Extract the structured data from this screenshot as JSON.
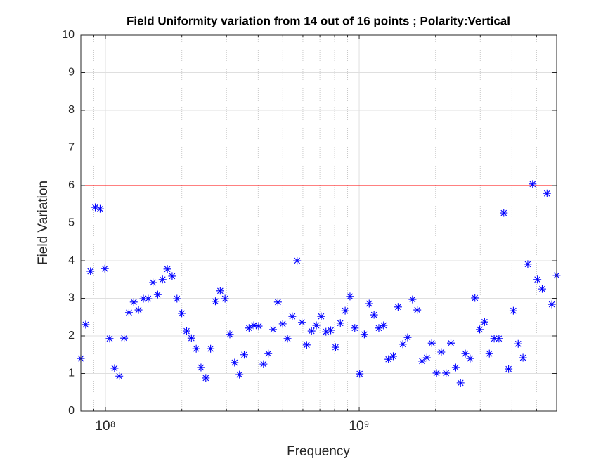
{
  "chart_data": {
    "type": "scatter",
    "title": "Field Uniformity variation from 14 out of 16 points ; Polarity:Vertical",
    "x_label": "Frequency",
    "y_label": "Field Variation",
    "x_scale": "log",
    "xlim": [
      80000000,
      6000000000
    ],
    "xticks": [
      {
        "value": 100000000,
        "label": "10⁸"
      },
      {
        "value": 1000000000,
        "label": "10⁹"
      }
    ],
    "xminorticks": [
      90000000,
      200000000,
      300000000,
      400000000,
      500000000,
      600000000,
      700000000,
      800000000,
      900000000,
      2000000000,
      3000000000,
      4000000000,
      5000000000
    ],
    "ylim": [
      0,
      10
    ],
    "yticks": [
      0,
      1,
      2,
      3,
      4,
      5,
      6,
      7,
      8,
      9,
      10
    ],
    "grid": true,
    "color": "#0000ff",
    "reference_line": {
      "value": 6,
      "color": "#ff0000"
    },
    "x": [
      80000000,
      83600000,
      87300000,
      91200000,
      95300000,
      99500000,
      103900000,
      108600000,
      113400000,
      118500000,
      123800000,
      129300000,
      135000000,
      141100000,
      147400000,
      153900000,
      160700000,
      167900000,
      175400000,
      183200000,
      191400000,
      199900000,
      208900000,
      218200000,
      227900000,
      238000000,
      248600000,
      259700000,
      271300000,
      283400000,
      296000000,
      309200000,
      322900000,
      337400000,
      352400000,
      368100000,
      384500000,
      401600000,
      419600000,
      438300000,
      457800000,
      478200000,
      499500000,
      521800000,
      545000000,
      569300000,
      594700000,
      621100000,
      648900000,
      677700000,
      708100000,
      739600000,
      772500000,
      807000000,
      842900000,
      880500000,
      919900000,
      960700000,
      1004000000,
      1048000000,
      1095000000,
      1144000000,
      1195000000,
      1248000000,
      1304000000,
      1362000000,
      1423000000,
      1486000000,
      1552000000,
      1622000000,
      1694000000,
      1769000000,
      1848000000,
      1931000000,
      2017000000,
      2106000000,
      2200000000,
      2298000000,
      2401000000,
      2508000000,
      2619000000,
      2736000000,
      2858000000,
      2985000000,
      3119000000,
      3258000000,
      3403000000,
      3554000000,
      3713000000,
      3879000000,
      4051000000,
      4232000000,
      4421000000,
      4618000000,
      4824000000,
      5039000000,
      5264000000,
      5498000000,
      5743000000,
      6000000000
    ],
    "values": [
      1.4,
      2.3,
      3.72,
      5.42,
      5.38,
      3.79,
      1.93,
      1.14,
      0.93,
      1.94,
      2.62,
      2.9,
      2.69,
      2.99,
      2.99,
      3.42,
      3.1,
      3.5,
      3.78,
      3.59,
      2.99,
      2.6,
      2.13,
      1.94,
      1.66,
      1.16,
      0.88,
      1.66,
      2.92,
      3.2,
      2.99,
      2.04,
      1.29,
      0.97,
      1.5,
      2.21,
      2.28,
      2.26,
      1.25,
      1.53,
      2.17,
      2.9,
      2.32,
      1.93,
      2.52,
      4.0,
      2.36,
      1.76,
      2.13,
      2.28,
      2.52,
      2.11,
      2.15,
      1.7,
      2.34,
      2.67,
      3.05,
      2.21,
      0.99,
      2.04,
      2.86,
      2.56,
      2.21,
      2.28,
      1.38,
      1.46,
      2.77,
      1.78,
      1.96,
      2.97,
      2.69,
      1.33,
      1.42,
      1.81,
      1.01,
      1.57,
      1.01,
      1.81,
      1.16,
      0.75,
      1.53,
      1.4,
      3.01,
      2.17,
      2.37,
      1.53,
      1.93,
      1.93,
      5.27,
      1.12,
      2.67,
      1.79,
      1.42,
      3.91,
      6.04,
      3.5,
      3.25,
      5.79,
      2.84,
      3.61
    ]
  }
}
